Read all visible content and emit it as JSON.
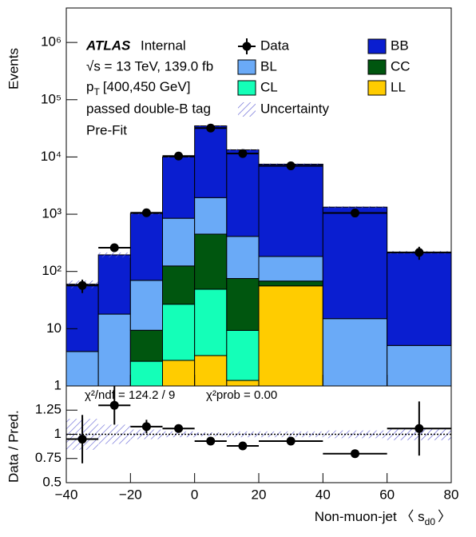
{
  "chart_data": [
    {
      "type": "stacked-histogram",
      "atlas_label": "ATLAS",
      "atlas_status": "Internal",
      "energy": "√s = 13 TeV, 139.0 fb",
      "kinematic": {
        "symbol": "p",
        "subscript": "T",
        "range": "[400,450 GeV]"
      },
      "selection": "passed double-B tag",
      "stage": "Pre-Fit",
      "y_label": "Events",
      "log_y": true,
      "bins": [
        -40,
        -30,
        -20,
        -10,
        0,
        10,
        20,
        40,
        60,
        80
      ],
      "xlim": [
        -40,
        80
      ],
      "xticks": [
        -40,
        -20,
        0,
        20,
        40,
        60,
        80
      ],
      "ylim": [
        1,
        4000000
      ],
      "yticks": [
        1,
        10,
        {
          "value": 100,
          "label": "10²"
        },
        {
          "value": 1000,
          "label": "10³"
        },
        {
          "value": 10000,
          "label": "10⁴"
        },
        {
          "value": 100000,
          "label": "10⁵"
        },
        {
          "value": 1000000,
          "label": "10⁶"
        }
      ],
      "series": [
        {
          "name": "LL",
          "color": "#ffcc00",
          "values": [
            0,
            0,
            0,
            2.8,
            3.4,
            1.25,
            56,
            0,
            0
          ]
        },
        {
          "name": "CL",
          "color": "#14ffb8",
          "values": [
            0,
            0,
            2.7,
            24,
            45.6,
            8.1,
            0,
            0,
            0
          ]
        },
        {
          "name": "CC",
          "color": "#00560f",
          "values": [
            0,
            0,
            6.7,
            98,
            400,
            66,
            12,
            0,
            0
          ]
        },
        {
          "name": "BL",
          "color": "#6aaaf7",
          "values": [
            4,
            18,
            60.6,
            725,
            1500,
            335,
            115,
            15,
            5.1
          ]
        },
        {
          "name": "BB",
          "color": "#0a1ed0",
          "values": [
            56,
            177,
            960,
            9150,
            33000,
            12900,
            7300,
            1315,
            210
          ]
        }
      ],
      "data": {
        "name": "Data",
        "values": [
          57,
          260,
          1060,
          10400,
          32000,
          11500,
          7000,
          1050,
          215
        ],
        "errors": [
          15,
          30,
          32,
          100,
          180,
          110,
          85,
          32,
          55
        ]
      },
      "uncertainty": {
        "name": "Uncertainty",
        "color": "#5a5ad2",
        "values": [
          0.16,
          0.1,
          0.05,
          0.03,
          0.02,
          0.03,
          0.03,
          0.04,
          0.06
        ]
      }
    },
    {
      "type": "ratio",
      "y_label": "Data / Pred.",
      "x_label": {
        "text": "Non-muon-jet 〈 s",
        "subscript": "d0",
        "close": "〉"
      },
      "chi2": "χ²/ndf = 124.2 / 9",
      "chi2_prob": "χ²prob = 0.00",
      "ylim": [
        0.5,
        1.5
      ],
      "yticks": [
        0.5,
        0.75,
        1,
        1.25
      ],
      "reference_line": 1,
      "xticks": [
        {
          "value": -40,
          "label": "−40"
        },
        {
          "value": -20,
          "label": "−20"
        },
        0,
        20,
        40,
        60,
        80
      ],
      "values": [
        0.95,
        1.3,
        1.08,
        1.06,
        0.93,
        0.88,
        0.93,
        0.8,
        1.06
      ],
      "errors": [
        0.25,
        0.2,
        0.07,
        0.02,
        0.02,
        0.02,
        0.03,
        0.04,
        0.28
      ]
    }
  ]
}
